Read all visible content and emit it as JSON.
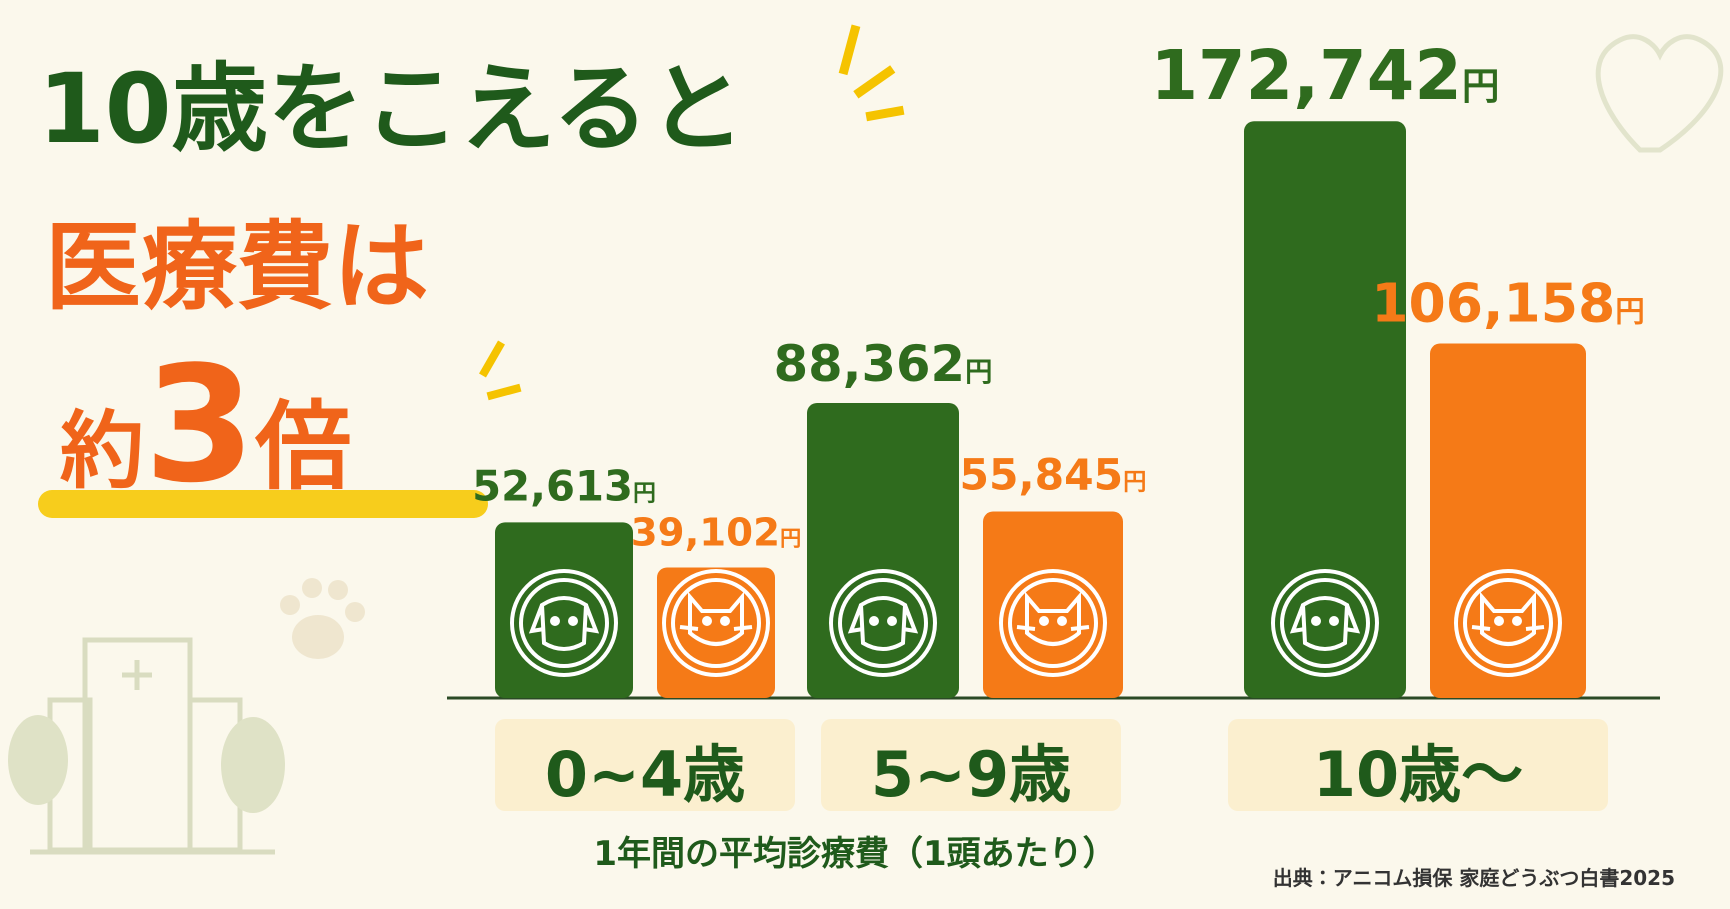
{
  "chart_data": {
    "type": "bar",
    "title": [
      "10歳をこえると",
      "医療費は"
    ],
    "highlight": [
      "約",
      "3",
      "倍"
    ],
    "categories": [
      "0~4歳",
      "5~9歳",
      "10歳～"
    ],
    "series": [
      {
        "color": "#2f6b1e",
        "values": [
          52613,
          88362,
          172742
        ],
        "value_labels": [
          "52,613円",
          "88,362円",
          "172,742円"
        ]
      },
      {
        "color": "#f57a17",
        "values": [
          39102,
          55845,
          106158
        ],
        "value_labels": [
          "39,102円",
          "55,845円",
          "106,158円"
        ]
      }
    ],
    "ylim": [
      0,
      180000
    ],
    "x_label": "1年間の平均診療費（1頭あたり）",
    "source": "出典：アニコム損保 家庭どうぶつ白書2025"
  }
}
